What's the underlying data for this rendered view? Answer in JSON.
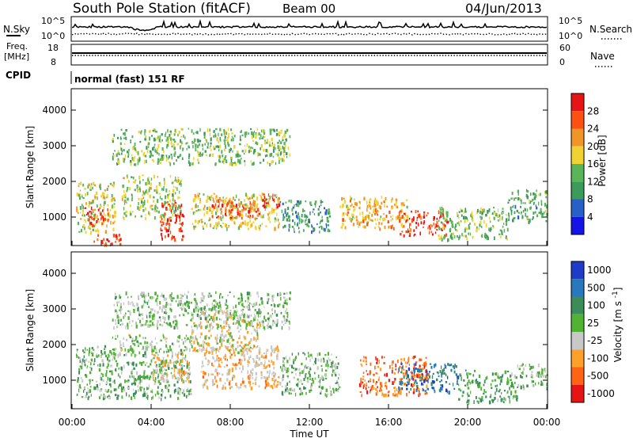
{
  "header": {
    "title": "South Pole Station (fitACF)",
    "beam": "Beam 00",
    "date": "04/Jun/2013"
  },
  "strips": {
    "nsky_label": "N.Sky",
    "nsearch_label": "N.Search",
    "freq_label_line1": "Freq.",
    "freq_label_line2": "[MHz]",
    "nave_label": "Nave",
    "cpid_label": "CPID",
    "cpid_value": "normal (fast) 151 RF",
    "noise_ticks_left": [
      "10^5",
      "10^0"
    ],
    "noise_ticks_right": [
      "10^5",
      "10^0"
    ],
    "freq_ticks_left": [
      "18",
      "8"
    ],
    "freq_ticks_right": [
      "60",
      "0"
    ]
  },
  "time_axis": {
    "label": "Time UT",
    "ticks": [
      "00:00",
      "04:00",
      "08:00",
      "12:00",
      "16:00",
      "20:00",
      "00:00"
    ]
  },
  "colors": {
    "power_scale": [
      "#1414e6",
      "#2860c8",
      "#3c9b5a",
      "#5ab45a",
      "#f0d232",
      "#f09628",
      "#ff5014",
      "#e61414"
    ],
    "velocity_scale": [
      "#1e3cc8",
      "#2878be",
      "#3c8c5a",
      "#50b432",
      "#c8c8c8",
      "#ffa028",
      "#ff6414",
      "#e61414"
    ],
    "scatter_visible": true
  },
  "chart_data": [
    {
      "type": "heatmap",
      "panel": "power",
      "ylabel": "Slant Range [km]",
      "yticks": [
        "1000",
        "2000",
        "3000",
        "4000"
      ],
      "ylim": [
        200,
        4600
      ],
      "xlim": [
        0,
        24
      ],
      "colorbar_label": "Power [dB]",
      "colorbar_ticks": [
        "4",
        "8",
        "12",
        "16",
        "20",
        "24",
        "28"
      ],
      "colorbar_range": [
        0,
        32
      ],
      "blobs": [
        {
          "t0": 0.2,
          "t1": 2.2,
          "r0": 600,
          "r1": 2000,
          "v": 18
        },
        {
          "t0": 0.5,
          "t1": 1.8,
          "r0": 800,
          "r1": 1300,
          "v": 28
        },
        {
          "t0": 1.0,
          "t1": 2.5,
          "r0": 250,
          "r1": 550,
          "v": 26
        },
        {
          "t0": 2.5,
          "t1": 5.5,
          "r0": 1000,
          "r1": 2200,
          "v": 16
        },
        {
          "t0": 4.4,
          "t1": 5.6,
          "r0": 400,
          "r1": 1500,
          "v": 28
        },
        {
          "t0": 6.0,
          "t1": 10.5,
          "r0": 700,
          "r1": 1700,
          "v": 18
        },
        {
          "t0": 7.0,
          "t1": 9.5,
          "r0": 1000,
          "r1": 1500,
          "v": 26
        },
        {
          "t0": 9.5,
          "t1": 10.5,
          "r0": 1300,
          "r1": 1700,
          "v": 30
        },
        {
          "t0": 10.5,
          "t1": 13.0,
          "r0": 600,
          "r1": 1500,
          "v": 10
        },
        {
          "t0": 13.5,
          "t1": 17.0,
          "r0": 700,
          "r1": 1600,
          "v": 20
        },
        {
          "t0": 16.5,
          "t1": 19.0,
          "r0": 500,
          "r1": 1200,
          "v": 28
        },
        {
          "t0": 18.5,
          "t1": 22.0,
          "r0": 400,
          "r1": 1300,
          "v": 14
        },
        {
          "t0": 22.0,
          "t1": 24.0,
          "r0": 900,
          "r1": 1800,
          "v": 12
        },
        {
          "t0": 2.0,
          "t1": 11.0,
          "r0": 2500,
          "r1": 3500,
          "v": 14
        }
      ]
    },
    {
      "type": "heatmap",
      "panel": "velocity",
      "ylabel": "Slant Range [km]",
      "yticks": [
        "1000",
        "2000",
        "3000",
        "4000"
      ],
      "ylim": [
        200,
        4600
      ],
      "xlim": [
        0,
        24
      ],
      "colorbar_label": "Velocity [m s^-1]",
      "colorbar_ticks": [
        "1000",
        "500",
        "100",
        "25",
        "-25",
        "-100",
        "-500",
        "-1000"
      ],
      "colorbar_range": [
        -1200,
        1200
      ],
      "blobs": [
        {
          "t0": 0.2,
          "t1": 2.5,
          "r0": 500,
          "r1": 2000,
          "v": 150
        },
        {
          "t0": 2.0,
          "t1": 6.0,
          "r0": 1700,
          "r1": 2300,
          "v": 0
        },
        {
          "t0": 2.5,
          "t1": 6.0,
          "r0": 500,
          "r1": 1600,
          "v": 200
        },
        {
          "t0": 4.0,
          "t1": 6.0,
          "r0": 1000,
          "r1": 1800,
          "v": -300
        },
        {
          "t0": 6.5,
          "t1": 10.5,
          "r0": 800,
          "r1": 2000,
          "v": -350
        },
        {
          "t0": 10.5,
          "t1": 13.5,
          "r0": 600,
          "r1": 1800,
          "v": 120
        },
        {
          "t0": 14.5,
          "t1": 18.0,
          "r0": 600,
          "r1": 1700,
          "v": -700
        },
        {
          "t0": 16.5,
          "t1": 19.5,
          "r0": 700,
          "r1": 1500,
          "v": 700
        },
        {
          "t0": 19.5,
          "t1": 22.5,
          "r0": 400,
          "r1": 1300,
          "v": 300
        },
        {
          "t0": 22.5,
          "t1": 24.0,
          "r0": 800,
          "r1": 1500,
          "v": 150
        },
        {
          "t0": 6.0,
          "t1": 9.5,
          "r0": 1800,
          "r1": 3000,
          "v": -200
        },
        {
          "t0": 2.0,
          "t1": 11.0,
          "r0": 2500,
          "r1": 3500,
          "v": 80
        }
      ]
    }
  ]
}
